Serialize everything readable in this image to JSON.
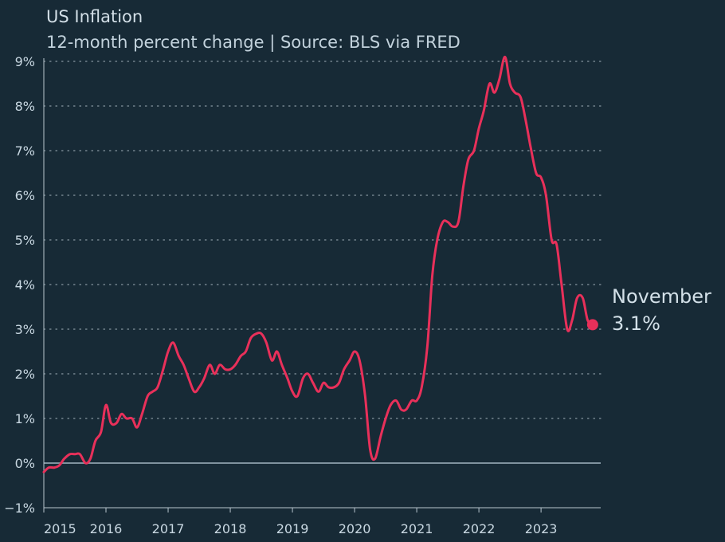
{
  "title": "US Inflation",
  "subtitle": "12-month percent change | Source: BLS via FRED",
  "colors": {
    "background": "#172a36",
    "line": "#e8305a",
    "zero_line": "#7f929e",
    "grid": "#b8c6cf",
    "text": "#c9d8e2"
  },
  "chart_data": {
    "type": "line",
    "title": "US Inflation",
    "subtitle": "12-month percent change | Source: BLS via FRED",
    "xlabel": "",
    "ylabel": "",
    "xlim": [
      2015.0,
      2023.96
    ],
    "ylim": [
      -1,
      9
    ],
    "grid": "horizontal dotted",
    "y_ticks": [
      -1,
      0,
      1,
      2,
      3,
      4,
      5,
      6,
      7,
      8,
      9
    ],
    "y_tick_labels": [
      "−1%",
      "0%",
      "1%",
      "2%",
      "3%",
      "4%",
      "5%",
      "6%",
      "7%",
      "8%",
      "9%"
    ],
    "x_ticks": [
      2015,
      2016,
      2017,
      2018,
      2019,
      2020,
      2021,
      2022,
      2023
    ],
    "x_tick_labels": [
      "2015",
      "2016",
      "2017",
      "2018",
      "2019",
      "2020",
      "2021",
      "2022",
      "2023"
    ],
    "annotation": {
      "label": "November",
      "value_label": "3.1%",
      "x": 2023.83,
      "y": 3.1
    },
    "series": [
      {
        "x": [
          2015.0,
          2015.08,
          2015.17,
          2015.25,
          2015.33,
          2015.42,
          2015.5,
          2015.58,
          2015.67,
          2015.75,
          2015.83,
          2015.92,
          2016.0,
          2016.08,
          2016.17,
          2016.25,
          2016.33,
          2016.42,
          2016.5,
          2016.58,
          2016.67,
          2016.75,
          2016.83,
          2016.92,
          2017.0,
          2017.08,
          2017.17,
          2017.25,
          2017.33,
          2017.42,
          2017.5,
          2017.58,
          2017.67,
          2017.75,
          2017.83,
          2017.92,
          2018.0,
          2018.08,
          2018.17,
          2018.25,
          2018.33,
          2018.42,
          2018.5,
          2018.58,
          2018.67,
          2018.75,
          2018.83,
          2018.92,
          2019.0,
          2019.08,
          2019.17,
          2019.25,
          2019.33,
          2019.42,
          2019.5,
          2019.58,
          2019.67,
          2019.75,
          2019.83,
          2019.92,
          2020.0,
          2020.08,
          2020.17,
          2020.25,
          2020.33,
          2020.42,
          2020.5,
          2020.58,
          2020.67,
          2020.75,
          2020.83,
          2020.92,
          2021.0,
          2021.08,
          2021.17,
          2021.25,
          2021.33,
          2021.42,
          2021.5,
          2021.58,
          2021.67,
          2021.75,
          2021.83,
          2021.92,
          2022.0,
          2022.08,
          2022.17,
          2022.25,
          2022.33,
          2022.42,
          2022.5,
          2022.58,
          2022.67,
          2022.75,
          2022.83,
          2022.92,
          2023.0,
          2023.08,
          2023.17,
          2023.25,
          2023.33,
          2023.42,
          2023.5,
          2023.58,
          2023.67,
          2023.75,
          2023.83
        ],
        "y": [
          -0.2,
          -0.1,
          -0.1,
          -0.05,
          0.1,
          0.2,
          0.2,
          0.2,
          0.0,
          0.1,
          0.5,
          0.7,
          1.3,
          0.9,
          0.9,
          1.1,
          1.0,
          1.0,
          0.8,
          1.1,
          1.5,
          1.6,
          1.7,
          2.1,
          2.5,
          2.7,
          2.4,
          2.2,
          1.9,
          1.6,
          1.7,
          1.9,
          2.2,
          2.0,
          2.2,
          2.1,
          2.1,
          2.2,
          2.4,
          2.5,
          2.8,
          2.9,
          2.9,
          2.7,
          2.3,
          2.5,
          2.2,
          1.9,
          1.6,
          1.5,
          1.9,
          2.0,
          1.8,
          1.6,
          1.8,
          1.7,
          1.7,
          1.8,
          2.1,
          2.3,
          2.5,
          2.3,
          1.5,
          0.3,
          0.1,
          0.6,
          1.0,
          1.3,
          1.4,
          1.2,
          1.2,
          1.4,
          1.4,
          1.7,
          2.6,
          4.2,
          5.0,
          5.4,
          5.4,
          5.3,
          5.4,
          6.2,
          6.8,
          7.0,
          7.5,
          7.9,
          8.5,
          8.3,
          8.6,
          9.1,
          8.5,
          8.3,
          8.2,
          7.7,
          7.1,
          6.5,
          6.4,
          6.0,
          5.0,
          4.9,
          4.0,
          3.0,
          3.2,
          3.7,
          3.7,
          3.2,
          3.1
        ]
      }
    ]
  }
}
